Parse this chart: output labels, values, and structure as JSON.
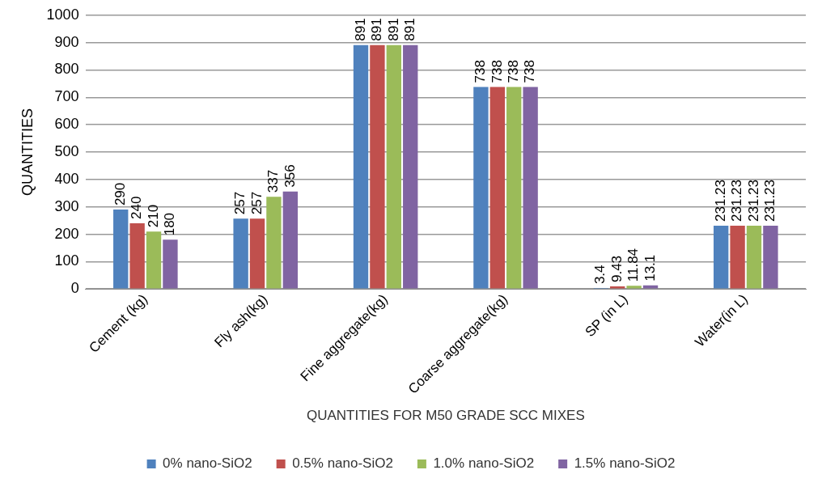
{
  "chart_data": {
    "type": "bar",
    "xlabel": "QUANTITIES FOR M50 GRADE SCC MIXES",
    "ylabel": "QUANTITIES",
    "categories": [
      "Cement (kg)",
      "Fly ash(kg)",
      "Fine aggregate(kg)",
      "Coarse aggregate(kg)",
      "SP (in L)",
      "Water(in L)"
    ],
    "series": [
      {
        "name": "0% nano-SiO2",
        "color": "#4f81bd",
        "values": [
          290,
          257,
          891,
          738,
          3.4,
          231.23
        ]
      },
      {
        "name": "0.5% nano-SiO2",
        "color": "#c0504d",
        "values": [
          240,
          257,
          891,
          738,
          9.43,
          231.23
        ]
      },
      {
        "name": "1.0% nano-SiO2",
        "color": "#9bbb59",
        "values": [
          210,
          337,
          891,
          738,
          11.84,
          231.23
        ]
      },
      {
        "name": "1.5% nano-SiO2",
        "color": "#8064a2",
        "values": [
          180,
          356,
          891,
          738,
          13.1,
          231.23
        ]
      }
    ],
    "ylim": [
      0,
      1000
    ],
    "yticks": [
      0,
      100,
      200,
      300,
      400,
      500,
      600,
      700,
      800,
      900,
      1000
    ],
    "grid": "y",
    "legend": "bottom",
    "data_labels": true
  }
}
